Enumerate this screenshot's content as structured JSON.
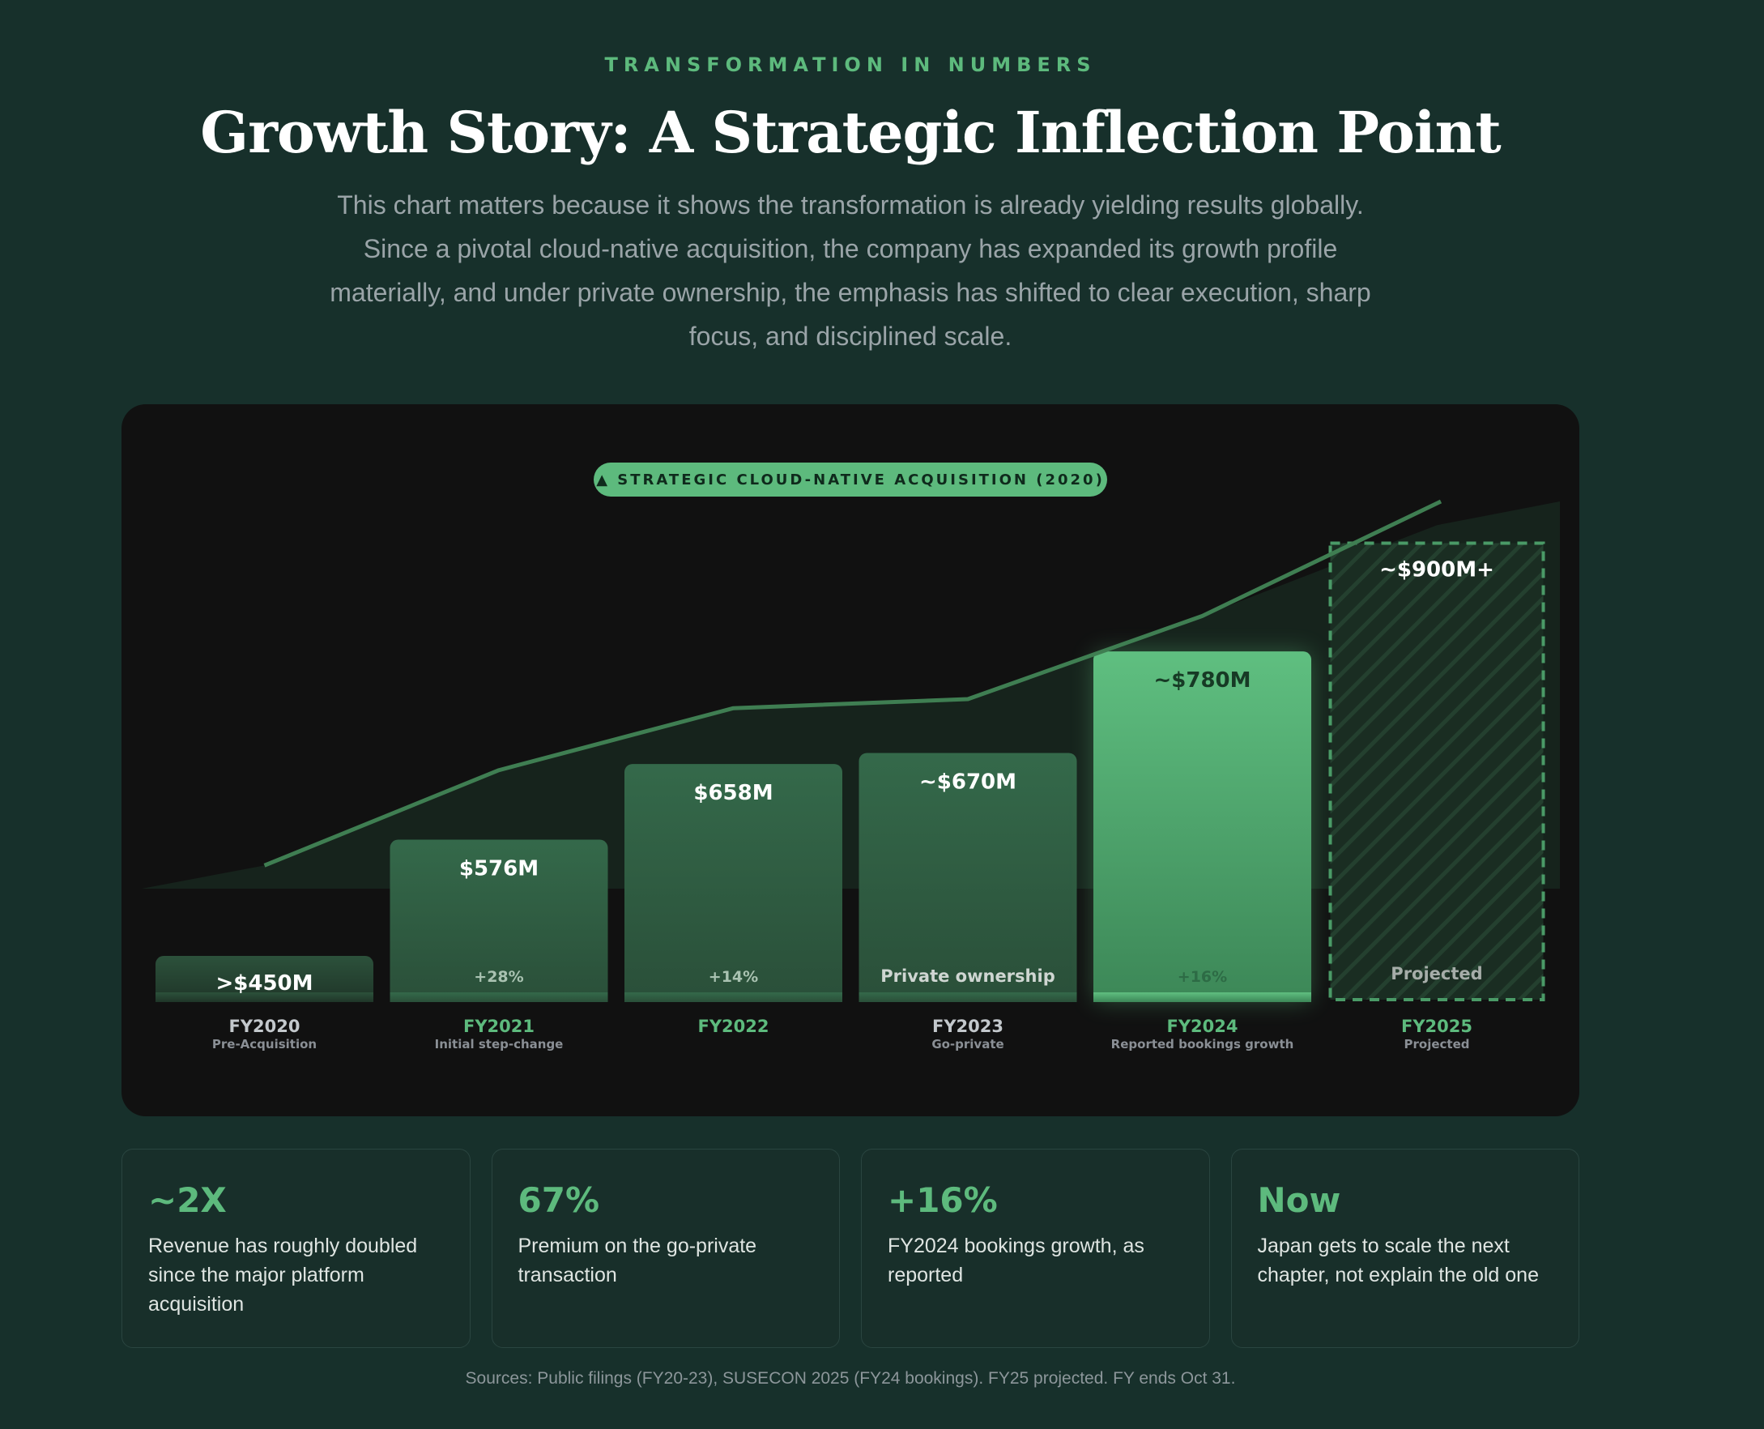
{
  "header": {
    "eyebrow": "TRANSFORMATION IN NUMBERS",
    "title": "Growth Story: A Strategic Inflection Point",
    "subtitle": "This chart matters because it shows the transformation is already yielding results globally. Since a pivotal cloud-native acquisition, the company has expanded its growth profile materially, and under private ownership, the emphasis has shifted to clear execution, sharp focus, and disciplined scale."
  },
  "chart_data": {
    "type": "bar",
    "title": "",
    "xlabel": "",
    "ylabel": "",
    "annotation": "▲ STRATEGIC CLOUD-NATIVE ACQUISITION (2020)",
    "categories": [
      "FY2020",
      "FY2021",
      "FY2022",
      "FY2023",
      "FY2024",
      "FY2025"
    ],
    "category_notes": [
      "Pre-Acquisition",
      "Initial step-change",
      "",
      "Go-private",
      "Reported bookings growth",
      "Projected"
    ],
    "values": [
      450,
      576,
      658,
      670,
      780,
      900
    ],
    "value_labels": [
      ">$450M",
      "$576M",
      "$658M",
      "~$670M",
      "~$780M",
      "~$900M+"
    ],
    "bar_notes": [
      "",
      "+28%",
      "+14%",
      "Private ownership",
      "+16%",
      "Projected"
    ],
    "projected": [
      false,
      false,
      false,
      false,
      false,
      true
    ],
    "trend_line": true,
    "ylim": [
      400,
      925
    ],
    "grid": false,
    "colors": {
      "bar_dark": "#2f5f42",
      "bar_highlight": "#5dba7d",
      "line": "#3f7e52",
      "accent": "#5dba7d",
      "category_muted": "#c3c8cc"
    }
  },
  "stats": [
    {
      "value": "~2X",
      "desc": "Revenue has roughly doubled since the major platform acquisition"
    },
    {
      "value": "67%",
      "desc": "Premium on the go-private transaction"
    },
    {
      "value": "+16%",
      "desc": "FY2024 bookings growth, as reported"
    },
    {
      "value": "Now",
      "desc": "Japan gets to scale the next chapter, not explain the old one"
    }
  ],
  "footer": {
    "sources": "Sources: Public filings (FY20-23), SUSECON 2025 (FY24 bookings). FY25 projected. FY ends Oct 31."
  }
}
